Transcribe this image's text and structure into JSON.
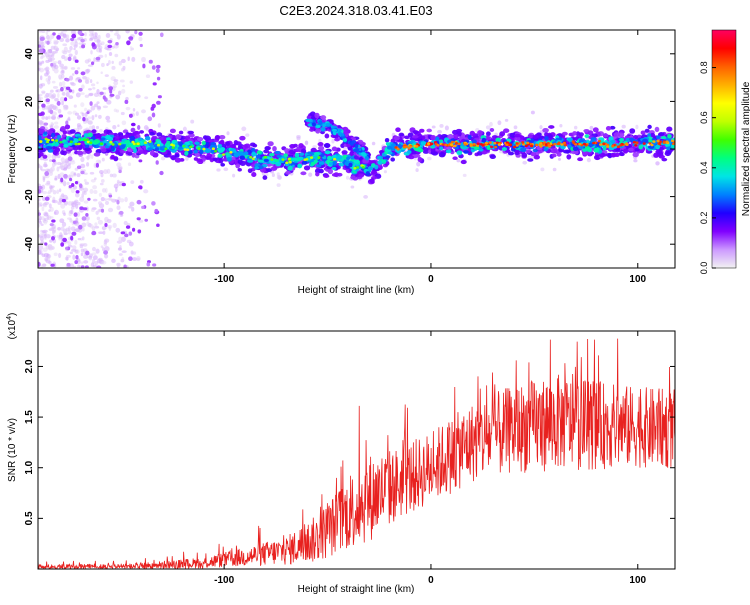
{
  "title": "C2E3.2024.318.03.41.E03",
  "colors": {
    "snr_line": "#e8211f",
    "scatter_gradient": [
      "#f2f2f2",
      "#cc99ff",
      "#8000ff",
      "#2000ff",
      "#0080ff",
      "#00e5e5",
      "#00ff80",
      "#40ff00",
      "#c0ff00",
      "#ffff00",
      "#ffb000",
      "#ff6000",
      "#ff0000",
      "#ff0060"
    ]
  },
  "chart_data": [
    {
      "type": "scatter",
      "xlabel": "Height of straight line (km)",
      "ylabel": "Frequency (Hz)",
      "xlim": [
        -190,
        118
      ],
      "ylim": [
        -50,
        50
      ],
      "x_ticks": [
        -100,
        0,
        100
      ],
      "y_ticks": [
        -40,
        -20,
        0,
        20,
        40
      ],
      "grid": false,
      "colorbar": {
        "label": "Normalized spectral amplitude",
        "range": [
          0,
          0.95
        ],
        "ticks": [
          0.0,
          0.2,
          0.4,
          0.6,
          0.8
        ]
      },
      "ridge": [
        {
          "x": -190,
          "y": 3
        },
        {
          "x": -160,
          "y": 3
        },
        {
          "x": -140,
          "y": 2
        },
        {
          "x": -120,
          "y": 1
        },
        {
          "x": -100,
          "y": -1
        },
        {
          "x": -85,
          "y": -4
        },
        {
          "x": -70,
          "y": -5
        },
        {
          "x": -55,
          "y": -4
        },
        {
          "x": -40,
          "y": -6
        },
        {
          "x": -28,
          "y": -9
        },
        {
          "x": -20,
          "y": 0
        },
        {
          "x": 0,
          "y": 2
        },
        {
          "x": 30,
          "y": 2
        },
        {
          "x": 60,
          "y": 2
        },
        {
          "x": 90,
          "y": 2
        },
        {
          "x": 118,
          "y": 3
        }
      ],
      "branch": [
        {
          "x": -60,
          "y": 11
        },
        {
          "x": -50,
          "y": 10
        },
        {
          "x": -43,
          "y": 6
        },
        {
          "x": -37,
          "y": 1
        },
        {
          "x": -30,
          "y": -4
        }
      ]
    },
    {
      "type": "line",
      "xlabel": "Height of straight line (km)",
      "ylabel": "SNR (10 * v/v)",
      "y_multiplier": "(x10",
      "y_multiplier_exp": "4",
      "y_multiplier_close": ")",
      "xlim": [
        -190,
        118
      ],
      "ylim": [
        0,
        2.35
      ],
      "x_ticks": [
        -100,
        0,
        100
      ],
      "y_ticks": [
        0.5,
        1.0,
        1.5,
        2.0
      ],
      "y_tick_labels": [
        "0.5",
        "1.0",
        "1.5",
        "2.0"
      ],
      "grid": false,
      "envelope": [
        {
          "x": -190,
          "base": 0.02,
          "spread": 0.03
        },
        {
          "x": -140,
          "base": 0.03,
          "spread": 0.04
        },
        {
          "x": -110,
          "base": 0.06,
          "spread": 0.07
        },
        {
          "x": -90,
          "base": 0.12,
          "spread": 0.12
        },
        {
          "x": -70,
          "base": 0.18,
          "spread": 0.18
        },
        {
          "x": -55,
          "base": 0.3,
          "spread": 0.3
        },
        {
          "x": -40,
          "base": 0.55,
          "spread": 0.45
        },
        {
          "x": -30,
          "base": 0.7,
          "spread": 0.55
        },
        {
          "x": -15,
          "base": 0.85,
          "spread": 0.45
        },
        {
          "x": 0,
          "base": 1.0,
          "spread": 0.45
        },
        {
          "x": 20,
          "base": 1.25,
          "spread": 0.5
        },
        {
          "x": 40,
          "base": 1.38,
          "spread": 0.55
        },
        {
          "x": 60,
          "base": 1.45,
          "spread": 0.6
        },
        {
          "x": 80,
          "base": 1.42,
          "spread": 0.55
        },
        {
          "x": 100,
          "base": 1.4,
          "spread": 0.5
        },
        {
          "x": 118,
          "base": 1.38,
          "spread": 0.5
        }
      ]
    }
  ]
}
